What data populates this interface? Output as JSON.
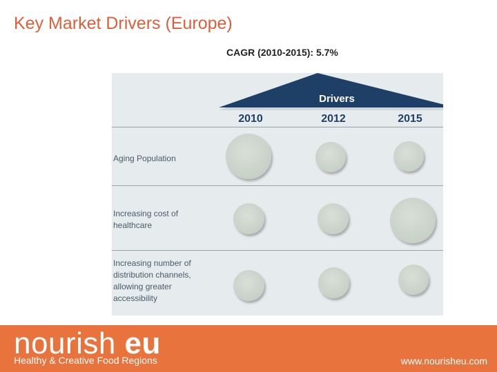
{
  "slide": {
    "title": "Key Market Drivers (Europe)"
  },
  "diagram": {
    "cagr": "CAGR (2010-2015): 5.7%",
    "header": "Drivers",
    "years": [
      "2010",
      "2012",
      "2015"
    ],
    "colors": {
      "header_fill": "#1e3f66",
      "panel": "#e6ebee",
      "bubble": "#c7d1c8"
    },
    "rows": [
      {
        "label": "Aging Population",
        "bubble_sizes": [
          "large",
          "small",
          "small"
        ]
      },
      {
        "label": "Increasing cost of\nhealthcare",
        "bubble_sizes": [
          "small",
          "small",
          "large"
        ]
      },
      {
        "label": "Increasing number of\ndistribution channels,\nallowing greater\naccessibility",
        "bubble_sizes": [
          "small",
          "small",
          "small"
        ]
      }
    ]
  },
  "footer": {
    "brand_main": "nourish",
    "brand_suffix": "eu",
    "tagline": "Healthy & Creative Food Regions",
    "url": "www.nourisheu.com",
    "color": "#e8733c"
  }
}
